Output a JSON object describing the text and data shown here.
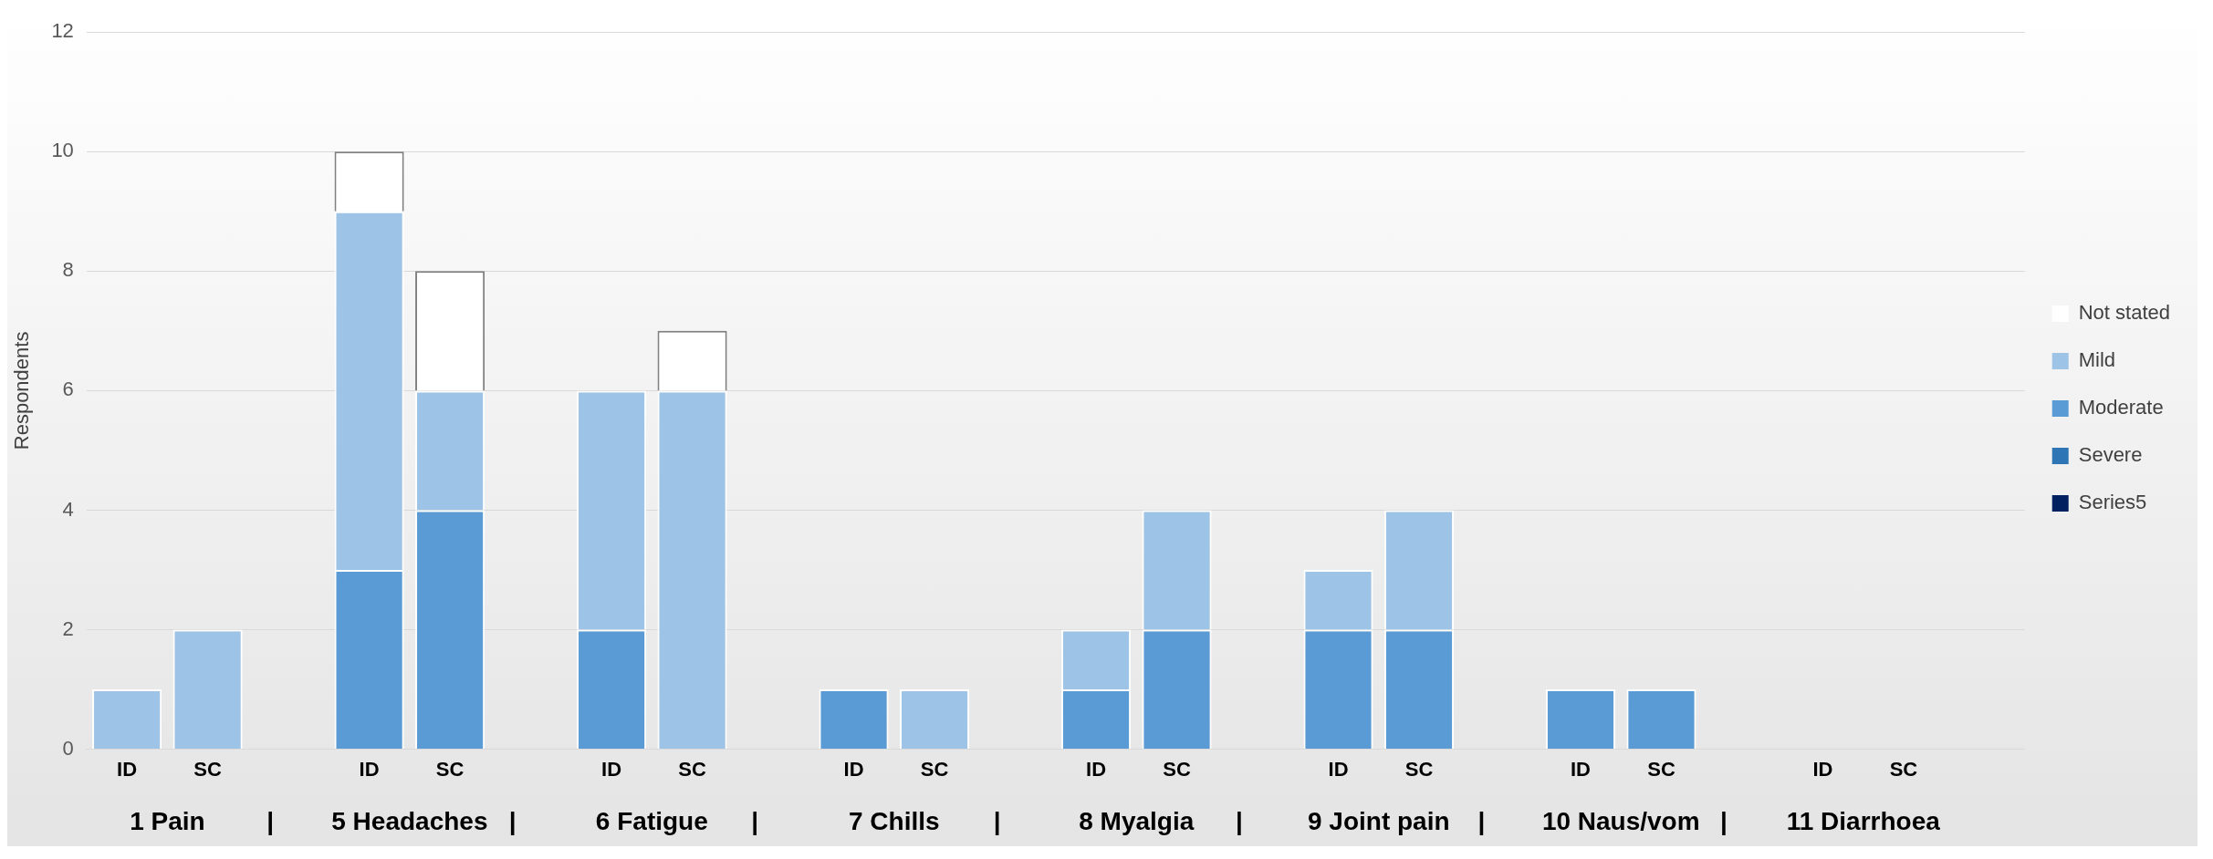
{
  "chart_data": {
    "type": "bar",
    "stacked": true,
    "ylabel": "Respondents",
    "ylim": [
      0,
      12
    ],
    "yticks": [
      0,
      2,
      4,
      6,
      8,
      10,
      12
    ],
    "grid": "y",
    "legend": "right",
    "categories": [
      "ID",
      "SC",
      null,
      "ID",
      "SC",
      null,
      "ID",
      "SC",
      null,
      "ID",
      "SC",
      null,
      "ID",
      "SC",
      null,
      "ID",
      "SC",
      null,
      "ID",
      "SC",
      null,
      "ID",
      "SC",
      null
    ],
    "series": [
      {
        "name": "Series5",
        "color": "#002060",
        "values": [
          0,
          0,
          null,
          0,
          0,
          null,
          0,
          0,
          null,
          0,
          0,
          null,
          0,
          0,
          null,
          0,
          0,
          null,
          0,
          0,
          null,
          0,
          0,
          null
        ]
      },
      {
        "name": "Severe",
        "color": "#2e75b6",
        "values": [
          0,
          0,
          null,
          0,
          0,
          null,
          0,
          0,
          null,
          0,
          0,
          null,
          0,
          0,
          null,
          0,
          0,
          null,
          0,
          0,
          null,
          0,
          0,
          null
        ]
      },
      {
        "name": "Moderate",
        "color": "#5b9bd5",
        "values": [
          0,
          0,
          null,
          3,
          4,
          null,
          2,
          0,
          null,
          1,
          0,
          null,
          1,
          2,
          null,
          2,
          2,
          null,
          1,
          1,
          null,
          0,
          0,
          null
        ]
      },
      {
        "name": "Mild",
        "color": "#9dc3e6",
        "values": [
          1,
          2,
          null,
          6,
          2,
          null,
          4,
          6,
          null,
          0,
          1,
          null,
          1,
          2,
          null,
          1,
          2,
          null,
          0,
          0,
          null,
          0,
          0,
          null
        ]
      },
      {
        "name": "Not stated",
        "color": "#ffffff",
        "values": [
          0,
          0,
          null,
          1,
          2,
          null,
          0,
          1,
          null,
          0,
          0,
          null,
          0,
          0,
          null,
          0,
          0,
          null,
          0,
          0,
          null,
          0,
          0,
          null
        ]
      }
    ],
    "annotations": [
      "1 Pain",
      "|",
      "5 Headaches",
      "|",
      "6 Fatigue",
      "|",
      "7 Chills",
      "|",
      "8 Myalgia",
      "|",
      "9 Joint pain",
      "|",
      "10 Naus/vom",
      "|",
      "11 Diarrhoea"
    ]
  }
}
